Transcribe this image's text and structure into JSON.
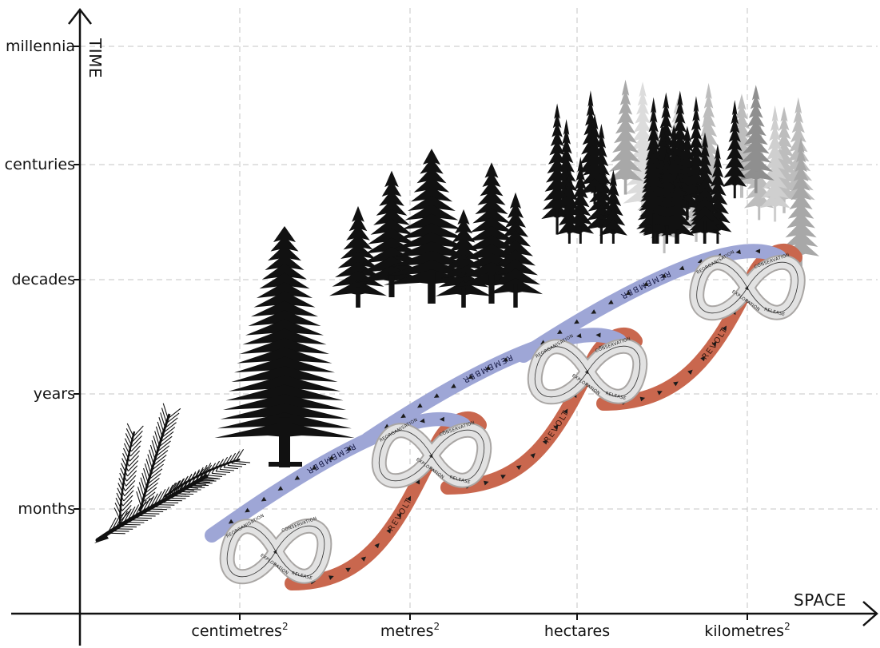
{
  "axes": {
    "y_title": "TIME",
    "x_title": "SPACE",
    "time_scales": [
      "millennia",
      "centuries",
      "decades",
      "years",
      "months"
    ],
    "space_scales": [
      {
        "base": "centimetres",
        "sup": "2"
      },
      {
        "base": "metres",
        "sup": "2"
      },
      {
        "base": "hectares",
        "sup": ""
      },
      {
        "base": "kilometres",
        "sup": "2"
      }
    ]
  },
  "links": {
    "remember": [
      "REMEMBER",
      "REMEMBER",
      "REMEMBER"
    ],
    "revolt": [
      "REVOLT",
      "REVOLT",
      "REVOLT"
    ]
  },
  "cycle_phases": [
    "REORGANISATION",
    "CONSERVATION",
    "EXPLORATION",
    "RELEASE"
  ],
  "colors": {
    "remember": "#9ea6d6",
    "revolt": "#c9674e",
    "loop": "#e2e2e2",
    "loop_dark": "#a9a6a4",
    "trees": "#111111"
  },
  "illustrations": [
    "pine-branch-icon",
    "single-tree-icon",
    "tree-group-icon",
    "forest-icon"
  ]
}
